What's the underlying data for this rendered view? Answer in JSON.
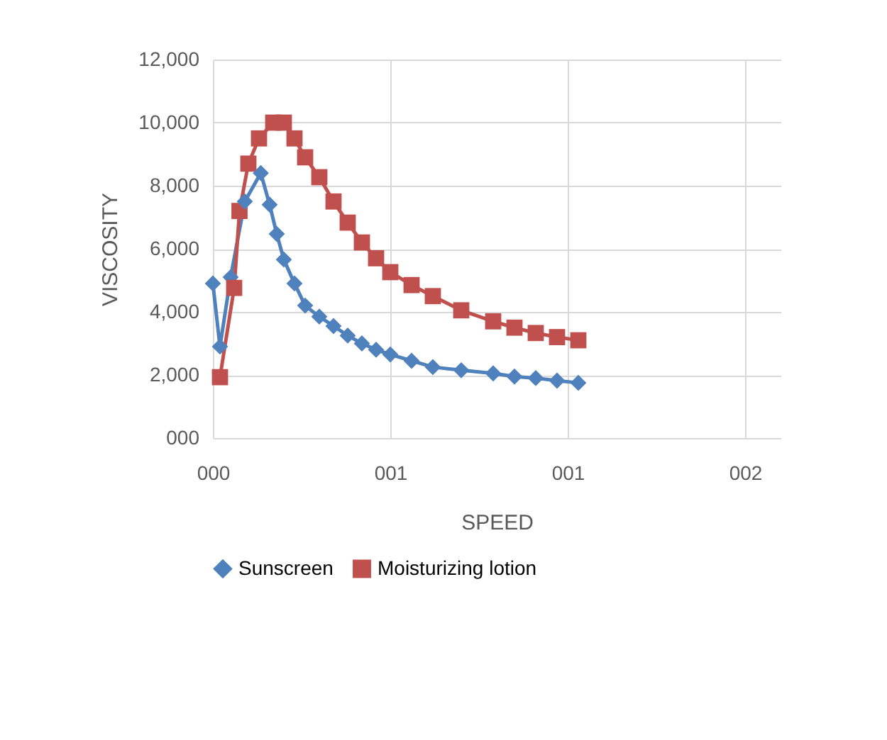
{
  "chart_data": {
    "type": "line",
    "xlabel": "SPEED",
    "ylabel": "VISCOSITY",
    "xlim": [
      0,
      1.6
    ],
    "ylim": [
      0,
      12000
    ],
    "xticks": [
      {
        "value": 0,
        "label": "000"
      },
      {
        "value": 0.5,
        "label": "001"
      },
      {
        "value": 1,
        "label": "001"
      },
      {
        "value": 1.5,
        "label": "002"
      }
    ],
    "yticks": [
      {
        "value": 0,
        "label": "000"
      },
      {
        "value": 2000,
        "label": "2,000"
      },
      {
        "value": 4000,
        "label": "4,000"
      },
      {
        "value": 6000,
        "label": "6,000"
      },
      {
        "value": 8000,
        "label": "8,000"
      },
      {
        "value": 10000,
        "label": "10,000"
      },
      {
        "value": 12000,
        "label": "12,000"
      }
    ],
    "grid": true,
    "legend": "bottom",
    "series": [
      {
        "name": "Sunscreen",
        "color": "#4f81bd",
        "marker": "diamond",
        "x": [
          0,
          0.02,
          0.05,
          0.09,
          0.135,
          0.16,
          0.18,
          0.2,
          0.23,
          0.26,
          0.3,
          0.34,
          0.38,
          0.42,
          0.46,
          0.5,
          0.56,
          0.62,
          0.7,
          0.79,
          0.85,
          0.91,
          0.97,
          1.03
        ],
        "values": [
          4900,
          2900,
          5100,
          7500,
          8400,
          7400,
          6470,
          5660,
          4900,
          4200,
          3850,
          3550,
          3250,
          3000,
          2800,
          2650,
          2450,
          2250,
          2150,
          2050,
          1950,
          1900,
          1820,
          1750
        ]
      },
      {
        "name": "Moisturizing lotion",
        "color": "#c0504d",
        "marker": "square",
        "x": [
          0.02,
          0.06,
          0.075,
          0.1,
          0.13,
          0.17,
          0.2,
          0.23,
          0.26,
          0.3,
          0.34,
          0.38,
          0.42,
          0.46,
          0.5,
          0.56,
          0.62,
          0.7,
          0.79,
          0.85,
          0.91,
          0.97,
          1.03
        ],
        "values": [
          1930,
          4760,
          7200,
          8700,
          9500,
          10000,
          10000,
          9500,
          8900,
          8270,
          7500,
          6830,
          6200,
          5700,
          5260,
          4850,
          4500,
          4050,
          3700,
          3500,
          3330,
          3200,
          3100
        ]
      }
    ]
  }
}
